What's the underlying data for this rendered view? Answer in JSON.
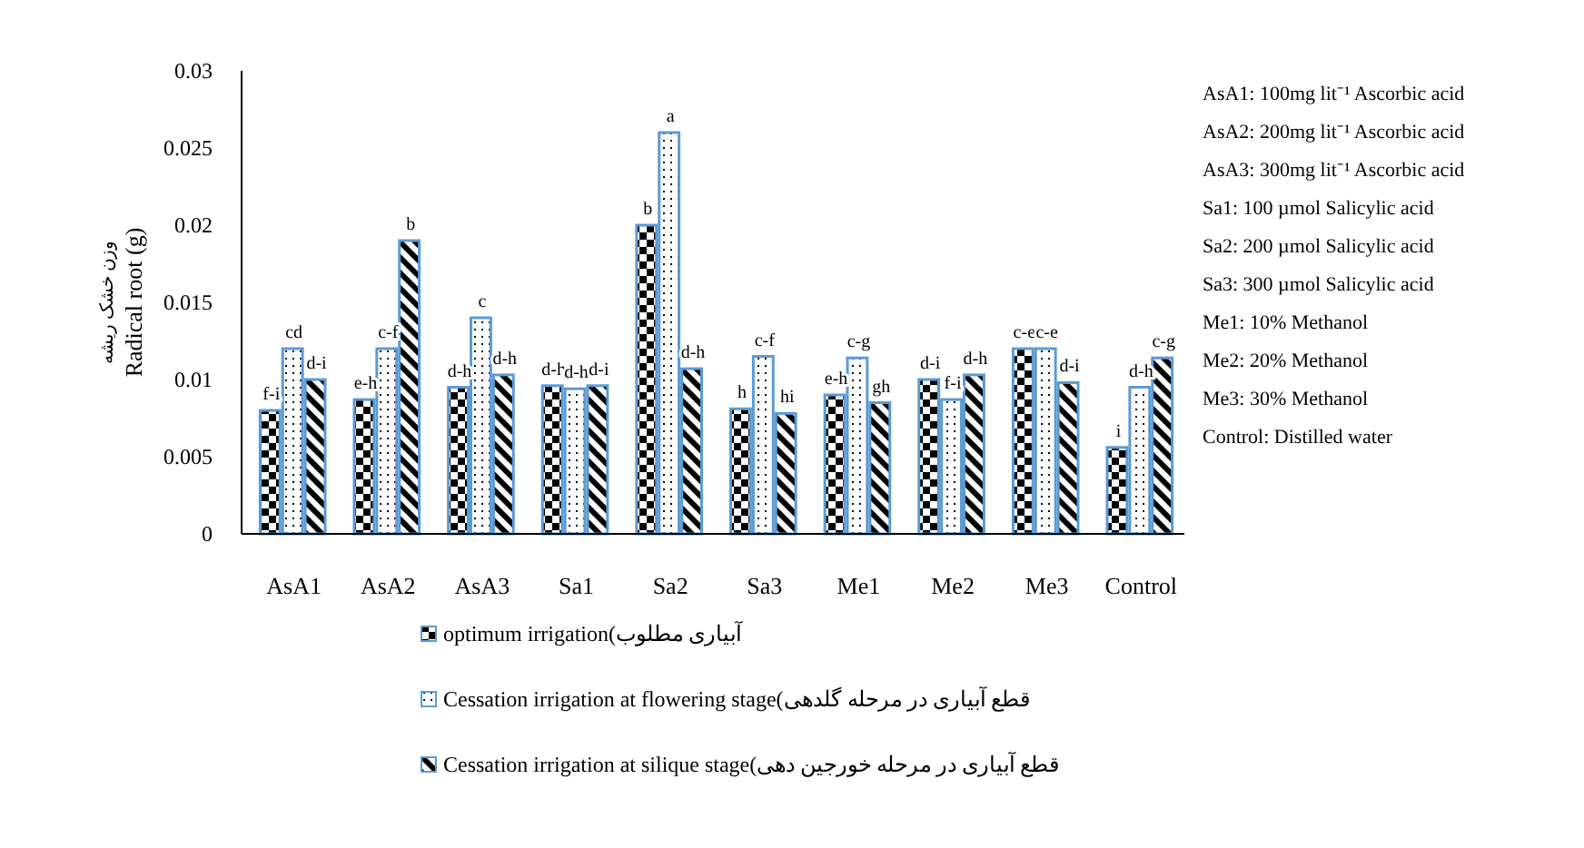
{
  "chart_data": {
    "type": "bar",
    "ylabel": "وزن خشک ریشه\nRadical root (g)",
    "categories": [
      "AsA1",
      "AsA2",
      "AsA3",
      "Sa1",
      "Sa2",
      "Sa3",
      "Me1",
      "Me2",
      "Me3",
      "Control"
    ],
    "series": [
      {
        "name": "optimum irrigation(آبیاری مطلوب",
        "color": "#5b9bd5",
        "values": [
          0.008,
          0.0087,
          0.0095,
          0.0096,
          0.02,
          0.0081,
          0.009,
          0.01,
          0.012,
          0.0056
        ],
        "value_labels": [
          "f-i",
          "e-h",
          "d-h",
          "d-h",
          "b",
          "h",
          "e-h",
          "d-i",
          "c-e",
          "i"
        ]
      },
      {
        "name": "Cessation irrigation at flowering stage(قطع آبیاری در مرحله گلدهی",
        "color": "#5b9bd5",
        "values": [
          0.012,
          0.012,
          0.014,
          0.0094,
          0.026,
          0.0115,
          0.0114,
          0.0087,
          0.012,
          0.0095
        ],
        "value_labels": [
          "cd",
          "c-f",
          "c",
          "d-h",
          "a",
          "c-f",
          "c-g",
          "f-i",
          "c-e",
          "d-h"
        ]
      },
      {
        "name": "Cessation irrigation at silique stage(قطع آبیاری در مرحله خورجین دهی",
        "color": "#5b9bd5",
        "values": [
          0.01,
          0.019,
          0.0103,
          0.0096,
          0.0107,
          0.0078,
          0.0085,
          0.0103,
          0.0098,
          0.0114
        ],
        "value_labels": [
          "d-i",
          "b",
          "d-h",
          "d-i",
          "d-h",
          "hi",
          "gh",
          "d-h",
          "d-i",
          "c-g"
        ]
      }
    ],
    "ylim": [
      0,
      0.03
    ],
    "yticks": [
      0,
      0.005,
      0.01,
      0.015,
      0.02,
      0.025,
      0.03
    ],
    "grid": false,
    "legend": "bottom",
    "annotations": [
      "AsA1: 100mg lit⁻¹ Ascorbic acid",
      "AsA2: 200mg lit⁻¹ Ascorbic acid",
      "AsA3: 300mg lit⁻¹ Ascorbic acid",
      "Sa1: 100 µmol Salicylic acid",
      "Sa2: 200 µmol Salicylic acid",
      "Sa3: 300 µmol Salicylic acid",
      "Me1: 10% Methanol",
      "Me2: 20% Methanol",
      "Me3: 30% Methanol",
      "Control: Distilled water"
    ]
  }
}
